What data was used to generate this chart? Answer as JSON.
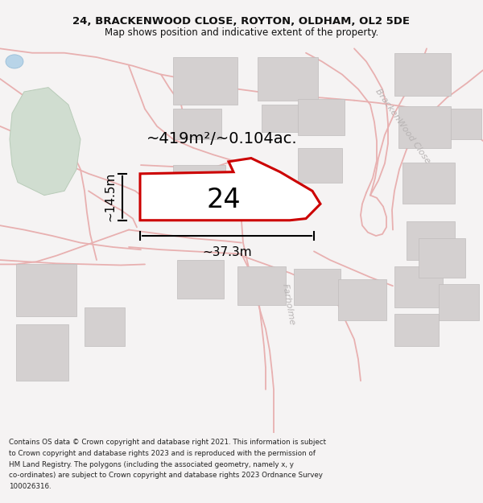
{
  "title_line1": "24, BRACKENWOOD CLOSE, ROYTON, OLDHAM, OL2 5DE",
  "title_line2": "Map shows position and indicative extent of the property.",
  "footer_text": "Contains OS data © Crown copyright and database right 2021. This information is subject to Crown copyright and database rights 2023 and is reproduced with the permission of HM Land Registry. The polygons (including the associated geometry, namely x, y co-ordinates) are subject to Crown copyright and database rights 2023 Ordnance Survey 100026316.",
  "area_label": "~419m²/~0.104ac.",
  "number_label": "24",
  "dim_width": "~37.3m",
  "dim_height": "~14.5m",
  "map_bg": "#f5f3f3",
  "road_color": "#e8b0b0",
  "building_color": "#d4d0d0",
  "building_edge": "#c0bcbc",
  "highlight_color": "#cc0000",
  "green_fill": "#d0ddd0",
  "green_edge": "#b8cbb8",
  "street_color": "#b8b4b4",
  "street_label_bracken": "BrackenWood Close",
  "street_label_far": "Farholme",
  "title_fontsize": 9.5,
  "subtitle_fontsize": 8.5,
  "footer_fontsize": 6.3,
  "area_fontsize": 14,
  "number_fontsize": 24,
  "dim_fontsize": 11,
  "street_fontsize": 8
}
